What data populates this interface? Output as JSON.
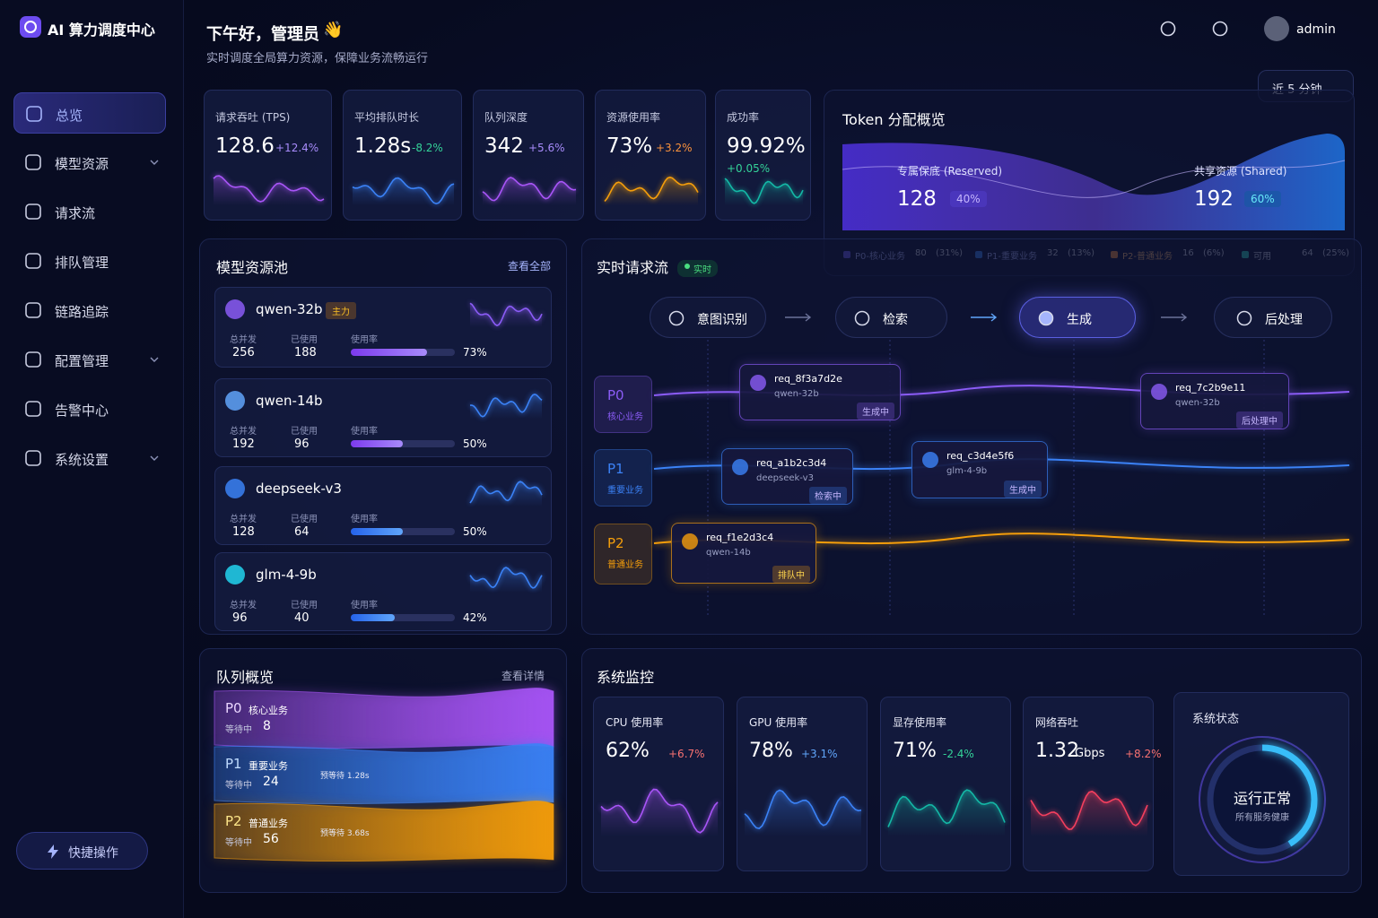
{
  "brand": "AI 算力调度中心",
  "nav": [
    {
      "label": "总览",
      "active": true
    },
    {
      "label": "模型资源",
      "expandable": true
    },
    {
      "label": "请求流"
    },
    {
      "label": "排队管理"
    },
    {
      "label": "链路追踪"
    },
    {
      "label": "配置管理",
      "expandable": true
    },
    {
      "label": "告警中心"
    },
    {
      "label": "系统设置",
      "expandable": true
    }
  ],
  "quick_action": "快捷操作",
  "header": {
    "greeting": "下午好，管理员",
    "greeting_emoji": "👋",
    "subtitle": "实时调度全局算力资源，保障业务流畅运行",
    "user": "admin",
    "time_range": "近 5 分钟"
  },
  "kpis": [
    {
      "title": "请求吞吐 (TPS)",
      "value": "128.6",
      "delta": "+12.4%",
      "color": "#a78bfa"
    },
    {
      "title": "平均排队时长",
      "value": "1.28s",
      "delta": "-8.2%",
      "color": "#34d399"
    },
    {
      "title": "队列深度",
      "value": "342",
      "delta": "+5.6%",
      "color": "#a78bfa"
    },
    {
      "title": "资源使用率",
      "value": "73%",
      "delta": "+3.2%",
      "color": "#fb923c"
    },
    {
      "title": "成功率",
      "value": "99.92%",
      "delta": "+0.05%",
      "color": "#34d399"
    }
  ],
  "token": {
    "title": "Token 分配概览",
    "reserved": {
      "label": "专属保底 (Reserved)",
      "value": "128",
      "share": "40%"
    },
    "shared": {
      "label": "共享资源 (Shared)",
      "value": "192",
      "share": "60%"
    },
    "legend": [
      {
        "name": "P0-核心业务",
        "value": "80",
        "share": "(31%)",
        "color": "#6d5cf6"
      },
      {
        "name": "P1-重要业务",
        "value": "32",
        "share": "(13%)",
        "color": "#3b82f6"
      },
      {
        "name": "P2-普通业务",
        "value": "16",
        "share": "(6%)",
        "color": "#fb923c"
      },
      {
        "name": "可用",
        "value": "64",
        "share": "(25%)",
        "color": "#2dd4bf"
      }
    ]
  },
  "models": {
    "title": "模型资源池",
    "link": "查看全部",
    "labels": {
      "total": "总并发",
      "used": "已使用",
      "usage": "使用率"
    },
    "items": [
      {
        "name": "qwen-32b",
        "tag": "主力",
        "total": "256",
        "used": "188",
        "usage": {
          "value": 73,
          "label": "73%"
        },
        "color": "#8b5cf6"
      },
      {
        "name": "qwen-14b",
        "total": "192",
        "used": "96",
        "usage": {
          "value": 50,
          "label": "50%"
        },
        "color": "#60a5fa"
      },
      {
        "name": "deepseek-v3",
        "total": "128",
        "used": "64",
        "usage": {
          "value": 50,
          "label": "50%"
        },
        "color": "#3b82f6"
      },
      {
        "name": "glm-4-9b",
        "total": "96",
        "used": "40",
        "usage": {
          "value": 42,
          "label": "42%"
        },
        "color": "#22d3ee"
      }
    ]
  },
  "flow": {
    "title": "实时请求流",
    "badge": "实时",
    "stages": [
      "意图识别",
      "检索",
      "生成",
      "后处理"
    ],
    "lanes": [
      {
        "name": "P0",
        "desc": "核心业务",
        "color": "#8b5cf6",
        "requests": [
          {
            "id": "req_8f3a7d2e",
            "model": "qwen-32b",
            "status": "生成中"
          },
          {
            "id": "req_7c2b9e11",
            "model": "qwen-32b",
            "status": "后处理中"
          }
        ]
      },
      {
        "name": "P1",
        "desc": "重要业务",
        "color": "#3b82f6",
        "requests": [
          {
            "id": "req_a1b2c3d4",
            "model": "deepseek-v3",
            "status": "检索中"
          },
          {
            "id": "req_c3d4e5f6",
            "model": "glm-4-9b",
            "status": "生成中"
          }
        ]
      },
      {
        "name": "P2",
        "desc": "普通业务",
        "color": "#f59e0b",
        "requests": [
          {
            "id": "req_f1e2d3c4",
            "model": "qwen-14b",
            "status": "排队中"
          }
        ]
      }
    ]
  },
  "queue": {
    "title": "队列概览",
    "link": "查看详情",
    "waiting": "等待中",
    "items": [
      {
        "name": "P0",
        "desc": "核心业务",
        "count": "8",
        "color": "#a855f7"
      },
      {
        "name": "P1",
        "desc": "重要业务",
        "count": "24",
        "eta": "预等待 1.28s",
        "color": "#3b82f6"
      },
      {
        "name": "P2",
        "desc": "普通业务",
        "count": "56",
        "eta": "预等待 3.68s",
        "color": "#f59e0b"
      }
    ]
  },
  "monitor": {
    "title": "系统监控",
    "items": [
      {
        "title": "CPU 使用率",
        "value": "62%",
        "delta": "+6.7%",
        "color": "#f87171",
        "line": "#a855f7"
      },
      {
        "title": "GPU 使用率",
        "value": "78%",
        "delta": "+3.1%",
        "color": "#60a5fa",
        "line": "#3b82f6"
      },
      {
        "title": "显存使用率",
        "value": "71%",
        "delta": "-2.4%",
        "color": "#34d399",
        "line": "#14b8a6"
      },
      {
        "title": "网络吞吐",
        "value": "1.32",
        "unit": "Gbps",
        "delta": "+8.2%",
        "color": "#f87171",
        "line": "#f43f5e"
      }
    ],
    "status": {
      "title": "系统状态",
      "state": "运行正常",
      "note": "所有服务健康"
    }
  }
}
